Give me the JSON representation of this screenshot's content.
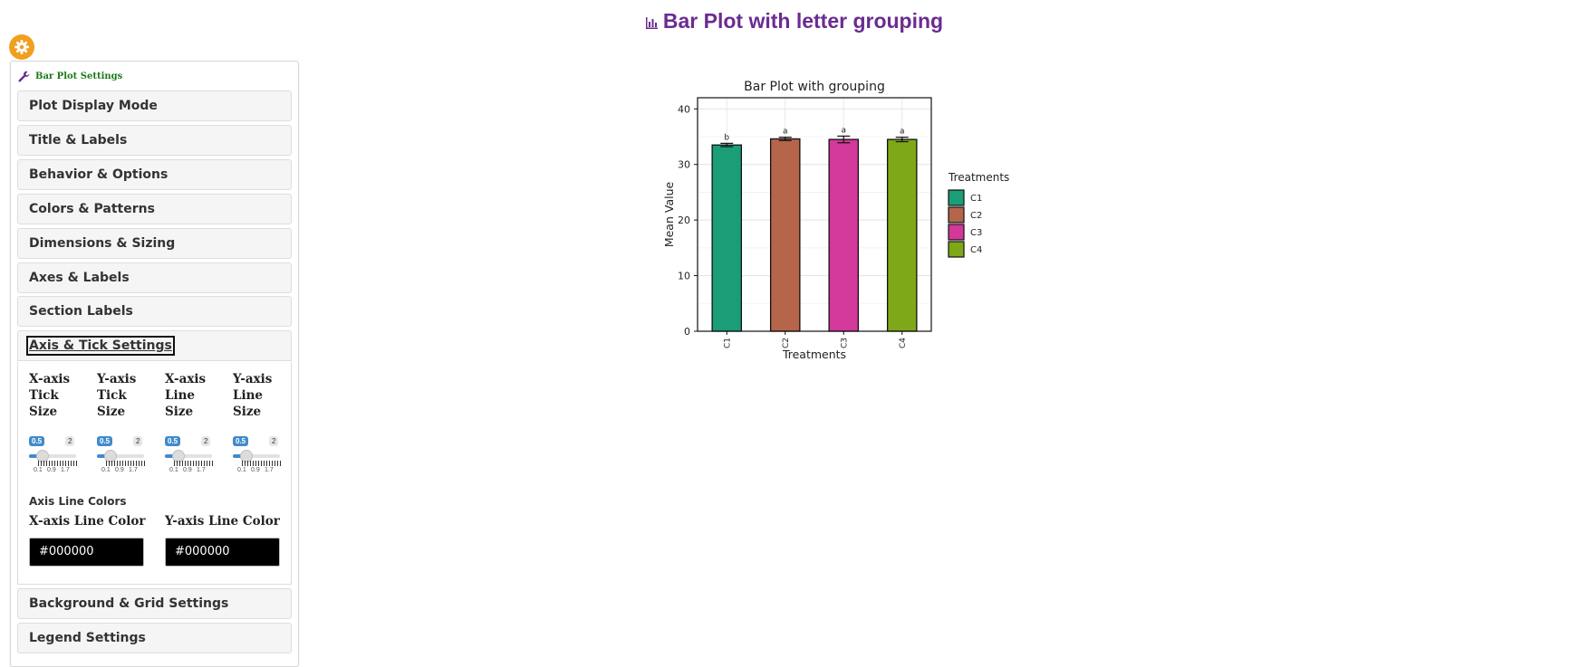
{
  "page": {
    "title": "Bar Plot with letter grouping",
    "title_icon": "bar-chart-icon"
  },
  "sidebar": {
    "toggle_icon": "gear-icon",
    "header": "Bar Plot Settings",
    "header_icon": "wrench-icon",
    "accent_color": "#f0a01e",
    "title_color": "#6a2c91",
    "sections_before": [
      "Plot Display Mode",
      "Title & Labels",
      "Behavior & Options",
      "Colors & Patterns",
      "Dimensions & Sizing",
      "Axes & Labels",
      "Section Labels"
    ],
    "open_section": {
      "label": "Axis & Tick Settings",
      "sliders": [
        {
          "label": "X-axis Tick Size",
          "value": "0.5",
          "max": "2",
          "ticks": [
            "0.1",
            "0.9",
            "1.7"
          ]
        },
        {
          "label": "Y-axis Tick Size",
          "value": "0.5",
          "max": "2",
          "ticks": [
            "0.1",
            "0.9",
            "1.7"
          ]
        },
        {
          "label": "X-axis Line Size",
          "value": "0.5",
          "max": "2",
          "ticks": [
            "0.1",
            "0.9",
            "1.7"
          ]
        },
        {
          "label": "Y-axis Line Size",
          "value": "0.5",
          "max": "2",
          "ticks": [
            "0.1",
            "0.9",
            "1.7"
          ]
        }
      ],
      "colors_title": "Axis Line Colors",
      "x_color_label": "X-axis Line Color",
      "x_color_value": "#000000",
      "y_color_label": "Y-axis Line Color",
      "y_color_value": "#000000"
    },
    "sections_after": [
      "Background & Grid Settings",
      "Legend Settings"
    ]
  },
  "chart_data": {
    "type": "bar",
    "title": "Bar Plot with grouping",
    "xlabel": "Treatments",
    "ylabel": "Mean Value",
    "categories": [
      "C1",
      "C2",
      "C3",
      "C4"
    ],
    "values": [
      33.5,
      34.6,
      34.5,
      34.5
    ],
    "errors": [
      0.3,
      0.3,
      0.6,
      0.4
    ],
    "group_letters": [
      "b",
      "a",
      "a",
      "a"
    ],
    "colors": [
      "#1b9e77",
      "#b5654a",
      "#d3399a",
      "#7fa818"
    ],
    "ylim": [
      0,
      42
    ],
    "yticks": [
      0,
      10,
      20,
      30,
      40
    ],
    "grid": true,
    "legend": {
      "title": "Treatments",
      "position": "right",
      "entries": [
        "C1",
        "C2",
        "C3",
        "C4"
      ]
    }
  }
}
